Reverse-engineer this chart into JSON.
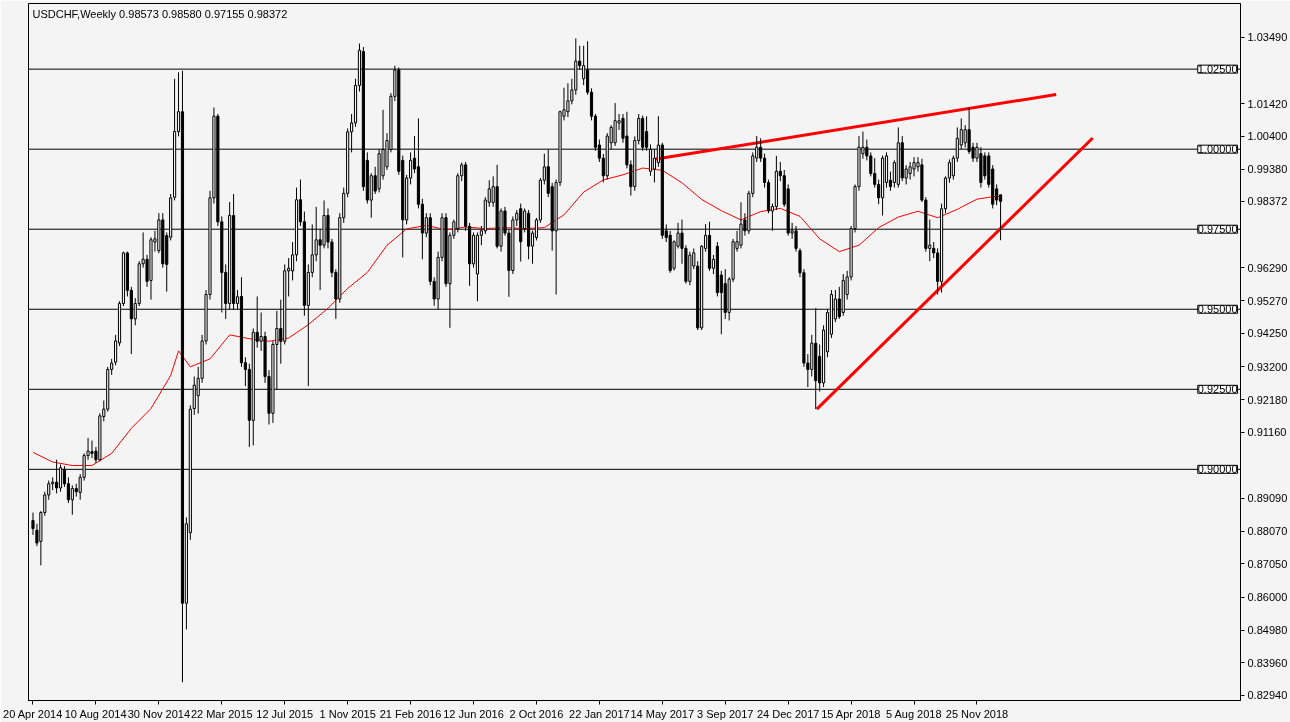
{
  "chart_data": {
    "type": "candlestick",
    "title": "USDCHF,Weekly 0.98573 0.98580 0.97155 0.98372",
    "color": "#000000",
    "x": [
      "2014-04-20",
      "2014-04-27",
      "2014-05-04",
      "2014-05-11",
      "2014-05-18",
      "2014-05-25",
      "2014-06-01",
      "2014-06-08",
      "2014-06-15",
      "2014-06-22",
      "2014-06-29",
      "2014-07-06",
      "2014-07-13",
      "2014-07-20",
      "2014-07-27",
      "2014-08-03",
      "2014-08-10",
      "2014-08-17",
      "2014-08-24",
      "2014-08-31",
      "2014-09-07",
      "2014-09-14",
      "2014-09-21",
      "2014-09-28",
      "2014-10-05",
      "2014-10-12",
      "2014-10-19",
      "2014-10-26",
      "2014-11-02",
      "2014-11-09",
      "2014-11-16",
      "2014-11-23",
      "2014-11-30",
      "2014-12-07",
      "2014-12-14",
      "2014-12-21",
      "2014-12-28",
      "2015-01-04",
      "2015-01-11",
      "2015-01-18",
      "2015-01-25",
      "2015-02-01",
      "2015-02-08",
      "2015-02-15",
      "2015-02-22",
      "2015-03-01",
      "2015-03-08",
      "2015-03-15",
      "2015-03-22",
      "2015-03-29",
      "2015-04-05",
      "2015-04-12",
      "2015-04-19",
      "2015-04-26",
      "2015-05-03",
      "2015-05-10",
      "2015-05-17",
      "2015-05-24",
      "2015-05-31",
      "2015-06-07",
      "2015-06-14",
      "2015-06-21",
      "2015-06-28",
      "2015-07-05",
      "2015-07-12",
      "2015-07-19",
      "2015-07-26",
      "2015-08-02",
      "2015-08-09",
      "2015-08-16",
      "2015-08-23",
      "2015-08-30",
      "2015-09-06",
      "2015-09-13",
      "2015-09-20",
      "2015-09-27",
      "2015-10-04",
      "2015-10-11",
      "2015-10-18",
      "2015-10-25",
      "2015-11-01",
      "2015-11-08",
      "2015-11-15",
      "2015-11-22",
      "2015-11-29",
      "2015-12-06",
      "2015-12-13",
      "2015-12-20",
      "2015-12-27",
      "2016-01-03",
      "2016-01-10",
      "2016-01-17",
      "2016-01-24",
      "2016-01-31",
      "2016-02-07",
      "2016-02-14",
      "2016-02-21",
      "2016-02-28",
      "2016-03-06",
      "2016-03-13",
      "2016-03-20",
      "2016-03-27",
      "2016-04-03",
      "2016-04-10",
      "2016-04-17",
      "2016-04-24",
      "2016-05-01",
      "2016-05-08",
      "2016-05-15",
      "2016-05-22",
      "2016-05-29",
      "2016-06-05",
      "2016-06-12",
      "2016-06-19",
      "2016-06-26",
      "2016-07-03",
      "2016-07-10",
      "2016-07-17",
      "2016-07-24",
      "2016-07-31",
      "2016-08-07",
      "2016-08-14",
      "2016-08-21",
      "2016-08-28",
      "2016-09-04",
      "2016-09-11",
      "2016-09-18",
      "2016-09-25",
      "2016-10-02",
      "2016-10-09",
      "2016-10-16",
      "2016-10-23",
      "2016-10-30",
      "2016-11-06",
      "2016-11-13",
      "2016-11-20",
      "2016-11-27",
      "2016-12-04",
      "2016-12-11",
      "2016-12-18",
      "2016-12-25",
      "2017-01-01",
      "2017-01-08",
      "2017-01-15",
      "2017-01-22",
      "2017-01-29",
      "2017-02-05",
      "2017-02-12",
      "2017-02-19",
      "2017-02-26",
      "2017-03-05",
      "2017-03-12",
      "2017-03-19",
      "2017-03-26",
      "2017-04-02",
      "2017-04-09",
      "2017-04-16",
      "2017-04-23",
      "2017-04-30",
      "2017-05-07",
      "2017-05-14",
      "2017-05-21",
      "2017-05-28",
      "2017-06-04",
      "2017-06-11",
      "2017-06-18",
      "2017-06-25",
      "2017-07-02",
      "2017-07-09",
      "2017-07-16",
      "2017-07-23",
      "2017-07-30",
      "2017-08-06",
      "2017-08-13",
      "2017-08-20",
      "2017-08-27",
      "2017-09-03",
      "2017-09-10",
      "2017-09-17",
      "2017-09-24",
      "2017-10-01",
      "2017-10-08",
      "2017-10-15",
      "2017-10-22",
      "2017-10-29",
      "2017-11-05",
      "2017-11-12",
      "2017-11-19",
      "2017-11-26",
      "2017-12-03",
      "2017-12-10",
      "2017-12-17",
      "2017-12-24",
      "2017-12-31",
      "2018-01-07",
      "2018-01-14",
      "2018-01-21",
      "2018-01-28",
      "2018-02-04",
      "2018-02-11",
      "2018-02-18",
      "2018-02-25",
      "2018-03-04",
      "2018-03-11",
      "2018-03-18",
      "2018-03-25",
      "2018-04-01",
      "2018-04-08",
      "2018-04-15",
      "2018-04-22",
      "2018-04-29",
      "2018-05-06",
      "2018-05-13",
      "2018-05-20",
      "2018-05-27",
      "2018-06-03",
      "2018-06-10",
      "2018-06-17",
      "2018-06-24",
      "2018-07-01",
      "2018-07-08",
      "2018-07-15",
      "2018-07-22",
      "2018-07-29",
      "2018-08-05",
      "2018-08-12",
      "2018-08-19",
      "2018-08-26",
      "2018-09-02",
      "2018-09-09",
      "2018-09-16",
      "2018-09-23",
      "2018-09-30",
      "2018-10-07",
      "2018-10-14",
      "2018-10-21",
      "2018-10-28",
      "2018-11-04",
      "2018-11-11",
      "2018-11-18",
      "2018-11-25",
      "2018-12-02",
      "2018-12-09",
      "2018-12-16",
      "2018-12-23",
      "2018-12-30",
      "2019-01-06"
    ],
    "ohlc": [
      [
        0.884,
        0.8865,
        0.8795,
        0.8815
      ],
      [
        0.881,
        0.883,
        0.876,
        0.877
      ],
      [
        0.8775,
        0.887,
        0.87,
        0.8865
      ],
      [
        0.8865,
        0.893,
        0.8855,
        0.892
      ],
      [
        0.892,
        0.8965,
        0.8905,
        0.8955
      ],
      [
        0.8955,
        0.8975,
        0.8935,
        0.896
      ],
      [
        0.896,
        0.903,
        0.8925,
        0.8942
      ],
      [
        0.8942,
        0.9015,
        0.893,
        0.9005
      ],
      [
        0.9,
        0.901,
        0.8945,
        0.8955
      ],
      [
        0.8955,
        0.8975,
        0.8895,
        0.8905
      ],
      [
        0.8905,
        0.895,
        0.8858,
        0.894
      ],
      [
        0.894,
        0.8955,
        0.8915,
        0.893
      ],
      [
        0.8928,
        0.8985,
        0.8905,
        0.8975
      ],
      [
        0.8975,
        0.905,
        0.8965,
        0.9043
      ],
      [
        0.9043,
        0.9098,
        0.903,
        0.9057
      ],
      [
        0.9055,
        0.909,
        0.9035,
        0.905
      ],
      [
        0.9057,
        0.907,
        0.902,
        0.903
      ],
      [
        0.903,
        0.9175,
        0.9025,
        0.9167
      ],
      [
        0.9165,
        0.9215,
        0.915,
        0.9188
      ],
      [
        0.9188,
        0.932,
        0.918,
        0.9312
      ],
      [
        0.9312,
        0.9345,
        0.9295,
        0.9332
      ],
      [
        0.9335,
        0.942,
        0.9325,
        0.9401
      ],
      [
        0.9395,
        0.9525,
        0.9385,
        0.9518
      ],
      [
        0.9518,
        0.968,
        0.951,
        0.9676
      ],
      [
        0.9676,
        0.968,
        0.954,
        0.9559
      ],
      [
        0.9559,
        0.957,
        0.936,
        0.947
      ],
      [
        0.947,
        0.9535,
        0.945,
        0.9518
      ],
      [
        0.9518,
        0.965,
        0.951,
        0.9642
      ],
      [
        0.9642,
        0.974,
        0.963,
        0.9656
      ],
      [
        0.9656,
        0.967,
        0.957,
        0.9587
      ],
      [
        0.959,
        0.9725,
        0.953,
        0.9717
      ],
      [
        0.971,
        0.9745,
        0.968,
        0.972
      ],
      [
        0.9683,
        0.98,
        0.9675,
        0.9779
      ],
      [
        0.9779,
        0.98,
        0.963,
        0.9642
      ],
      [
        0.973,
        0.974,
        0.9555,
        0.964
      ],
      [
        0.9725,
        0.986,
        0.9715,
        0.9848
      ],
      [
        0.985,
        1.022,
        0.984,
        1.0055
      ],
      [
        1.0055,
        1.024,
        1.004,
        1.0117
      ],
      [
        1.0117,
        1.0245,
        0.8335,
        0.8582
      ],
      [
        0.8582,
        0.885,
        0.85,
        0.883
      ],
      [
        0.8802,
        0.92,
        0.878,
        0.9188
      ],
      [
        0.919,
        0.929,
        0.917,
        0.9263
      ],
      [
        0.923,
        0.932,
        0.9174,
        0.9284
      ],
      [
        0.9284,
        0.942,
        0.927,
        0.9401
      ],
      [
        0.9401,
        0.956,
        0.939,
        0.9546
      ],
      [
        0.9546,
        0.987,
        0.953,
        0.9848
      ],
      [
        0.9848,
        1.013,
        0.983,
        1.0103
      ],
      [
        1.0103,
        1.011,
        0.976,
        0.9773
      ],
      [
        0.9773,
        0.979,
        0.949,
        0.9615
      ],
      [
        0.9615,
        0.964,
        0.947,
        0.9518
      ],
      [
        0.9518,
        0.9835,
        0.95,
        0.9793
      ],
      [
        0.9793,
        0.986,
        0.9498,
        0.9518
      ],
      [
        0.9518,
        0.956,
        0.95,
        0.9539
      ],
      [
        0.954,
        0.96,
        0.932,
        0.9333
      ],
      [
        0.9333,
        0.935,
        0.926,
        0.9312
      ],
      [
        0.9312,
        0.933,
        0.907,
        0.9153
      ],
      [
        0.9153,
        0.944,
        0.9075,
        0.9428
      ],
      [
        0.9428,
        0.954,
        0.938,
        0.94
      ],
      [
        0.94,
        0.949,
        0.937,
        0.9415
      ],
      [
        0.9415,
        0.943,
        0.927,
        0.929
      ],
      [
        0.929,
        0.931,
        0.914,
        0.9175
      ],
      [
        0.9175,
        0.94,
        0.9145,
        0.939
      ],
      [
        0.939,
        0.9495,
        0.925,
        0.944
      ],
      [
        0.944,
        0.953,
        0.933,
        0.94
      ],
      [
        0.94,
        0.964,
        0.939,
        0.962
      ],
      [
        0.962,
        0.966,
        0.954,
        0.9628
      ],
      [
        0.962,
        0.971,
        0.959,
        0.967
      ],
      [
        0.967,
        0.988,
        0.965,
        0.9842
      ],
      [
        0.9842,
        0.9905,
        0.976,
        0.9773
      ],
      [
        0.9773,
        0.9805,
        0.948,
        0.9512
      ],
      [
        0.9512,
        0.964,
        0.926,
        0.9615
      ],
      [
        0.9615,
        0.9765,
        0.96,
        0.967
      ],
      [
        0.967,
        0.982,
        0.965,
        0.9717
      ],
      [
        0.9717,
        0.975,
        0.956,
        0.97
      ],
      [
        0.97,
        0.984,
        0.969,
        0.9793
      ],
      [
        0.9793,
        0.9815,
        0.969,
        0.971
      ],
      [
        0.971,
        0.972,
        0.96,
        0.9615
      ],
      [
        0.9615,
        0.9625,
        0.947,
        0.9532
      ],
      [
        0.9532,
        0.98,
        0.952,
        0.9786
      ],
      [
        0.9786,
        0.988,
        0.977,
        0.9862
      ],
      [
        0.9862,
        1.0065,
        0.985,
        1.0054
      ],
      [
        1.0054,
        1.011,
        0.999,
        1.0082
      ],
      [
        1.0082,
        1.022,
        1.007,
        1.0199
      ],
      [
        1.0199,
        1.033,
        1.018,
        1.0309
      ],
      [
        1.0305,
        1.0319,
        0.987,
        0.9883
      ],
      [
        0.9965,
        0.999,
        0.983,
        0.9841
      ],
      [
        0.9841,
        0.9925,
        0.9786,
        0.9917
      ],
      [
        0.9917,
        0.9945,
        0.986,
        0.9869
      ],
      [
        0.9876,
        1.0,
        0.9865,
        0.9986
      ],
      [
        0.9917,
        1.0123,
        0.9905,
        0.9999
      ],
      [
        0.9945,
        1.005,
        0.9935,
        1.0027
      ],
      [
        0.9999,
        1.0175,
        0.999,
        1.0165
      ],
      [
        1.0165,
        1.0261,
        1.015,
        1.0247
      ],
      [
        1.0247,
        1.0255,
        0.992,
        0.9931
      ],
      [
        0.9965,
        0.998,
        0.9662,
        0.9779
      ],
      [
        0.9779,
        0.992,
        0.9765,
        0.991
      ],
      [
        0.991,
        0.999,
        0.989,
        0.9965
      ],
      [
        0.9972,
        1.0041,
        0.9925,
        0.9938
      ],
      [
        0.9945,
        1.0096,
        0.9815,
        0.9828
      ],
      [
        0.9828,
        0.9845,
        0.9656,
        0.9738
      ],
      [
        0.9738,
        0.98,
        0.9725,
        0.9786
      ],
      [
        0.9786,
        0.98,
        0.9575,
        0.9587
      ],
      [
        0.9587,
        0.96,
        0.9511,
        0.9532
      ],
      [
        0.9532,
        0.968,
        0.95,
        0.9662
      ],
      [
        0.9662,
        0.98,
        0.965,
        0.9786
      ],
      [
        0.9786,
        0.98,
        0.957,
        0.958
      ],
      [
        0.958,
        0.974,
        0.9442,
        0.9731
      ],
      [
        0.9731,
        0.978,
        0.972,
        0.9773
      ],
      [
        0.9752,
        0.9925,
        0.974,
        0.9917
      ],
      [
        0.9917,
        0.9958,
        0.99,
        0.9951
      ],
      [
        0.9951,
        0.996,
        0.9745,
        0.9759
      ],
      [
        0.9759,
        0.977,
        0.9573,
        0.9642
      ],
      [
        0.9642,
        0.974,
        0.963,
        0.9731
      ],
      [
        0.961,
        0.974,
        0.9525,
        0.9731
      ],
      [
        0.9731,
        0.976,
        0.97,
        0.9745
      ],
      [
        0.9745,
        0.985,
        0.9735,
        0.9841
      ],
      [
        0.9834,
        0.9903,
        0.982,
        0.9876
      ],
      [
        0.9834,
        0.9915,
        0.982,
        0.9883
      ],
      [
        0.9883,
        0.9951,
        0.969,
        0.9697
      ],
      [
        0.9697,
        0.9815,
        0.968,
        0.9807
      ],
      [
        0.9807,
        0.982,
        0.973,
        0.9738
      ],
      [
        0.9738,
        0.975,
        0.9539,
        0.9621
      ],
      [
        0.9621,
        0.979,
        0.961,
        0.9779
      ],
      [
        0.9779,
        0.981,
        0.976,
        0.98
      ],
      [
        0.9814,
        0.983,
        0.9649,
        0.9711
      ],
      [
        0.9752,
        0.9815,
        0.974,
        0.9807
      ],
      [
        0.98,
        0.981,
        0.9656,
        0.9697
      ],
      [
        0.9697,
        0.9745,
        0.9642,
        0.9738
      ],
      [
        0.9724,
        0.9785,
        0.9715,
        0.9779
      ],
      [
        0.9779,
        0.991,
        0.977,
        0.9903
      ],
      [
        0.9903,
        0.9986,
        0.989,
        0.9945
      ],
      [
        0.9945,
        0.9999,
        0.985,
        0.9862
      ],
      [
        0.9883,
        0.9895,
        0.9683,
        0.9745
      ],
      [
        0.9745,
        0.9905,
        0.9546,
        0.9896
      ],
      [
        0.9896,
        1.012,
        0.9885,
        1.0117
      ],
      [
        1.0103,
        1.0192,
        1.009,
        1.0123
      ],
      [
        1.0117,
        1.0206,
        1.01,
        1.0151
      ],
      [
        1.0151,
        1.022,
        1.014,
        1.0185
      ],
      [
        1.0185,
        1.0346,
        1.017,
        1.0275
      ],
      [
        1.0275,
        1.0323,
        1.025,
        1.0261
      ],
      [
        1.022,
        1.0323,
        1.02,
        1.0261
      ],
      [
        1.0247,
        1.0337,
        1.017,
        1.0178
      ],
      [
        1.0178,
        1.019,
        1.009,
        1.0103
      ],
      [
        1.0103,
        1.011,
        0.9995,
        1.0006
      ],
      [
        1.0013,
        1.003,
        0.996,
        0.9972
      ],
      [
        0.9972,
        0.9985,
        0.9896,
        0.9917
      ],
      [
        0.9917,
        1.005,
        0.9905,
        1.0041
      ],
      [
        1.002,
        1.0075,
        1.0,
        1.0068
      ],
      [
        1.002,
        1.0144,
        1.001,
        1.0089
      ],
      [
        1.0082,
        1.011,
        1.006,
        1.0089
      ],
      [
        1.0096,
        1.011,
        1.002,
        1.0034
      ],
      [
        1.0041,
        1.0117,
        0.994,
        0.9951
      ],
      [
        0.9951,
        0.9965,
        0.9855,
        0.9883
      ],
      [
        0.9883,
        1.004,
        0.987,
        1.0027
      ],
      [
        1.0027,
        1.011,
        1.0015,
        1.0096
      ],
      [
        1.0096,
        1.0105,
        0.9995,
        1.0006
      ],
      [
        1.0055,
        1.0103,
        0.9995,
        1.0006
      ],
      [
        0.9931,
        1.0015,
        0.9917,
        0.9999
      ],
      [
        0.9938,
        1.0,
        0.9896,
        0.9972
      ],
      [
        0.9958,
        1.0103,
        0.9945,
        1.0013
      ],
      [
        1.0013,
        1.002,
        0.972,
        0.9731
      ],
      [
        0.9745,
        0.9765,
        0.971,
        0.9724
      ],
      [
        0.9731,
        0.9745,
        0.9614,
        0.9621
      ],
      [
        0.9628,
        0.9715,
        0.9621,
        0.9711
      ],
      [
        0.9697,
        0.977,
        0.969,
        0.9738
      ],
      [
        0.9738,
        0.978,
        0.9642,
        0.969
      ],
      [
        0.969,
        0.97,
        0.958,
        0.9587
      ],
      [
        0.9587,
        0.968,
        0.9575,
        0.9669
      ],
      [
        0.9635,
        0.969,
        0.9625,
        0.9676
      ],
      [
        0.9635,
        0.965,
        0.9435,
        0.9442
      ],
      [
        0.9442,
        0.97,
        0.9435,
        0.9697
      ],
      [
        0.969,
        0.9766,
        0.968,
        0.9731
      ],
      [
        0.9731,
        0.9773,
        0.962,
        0.9628
      ],
      [
        0.9628,
        0.967,
        0.961,
        0.9656
      ],
      [
        0.9697,
        0.971,
        0.954,
        0.9552
      ],
      [
        0.9607,
        0.962,
        0.9422,
        0.9552
      ],
      [
        0.958,
        0.9625,
        0.947,
        0.949
      ],
      [
        0.949,
        0.96,
        0.9465,
        0.9594
      ],
      [
        0.9594,
        0.972,
        0.9585,
        0.9711
      ],
      [
        0.969,
        0.9745,
        0.968,
        0.9711
      ],
      [
        0.97,
        0.9834,
        0.969,
        0.9766
      ],
      [
        0.9779,
        0.98,
        0.973,
        0.9745
      ],
      [
        0.9745,
        0.987,
        0.9735,
        0.9862
      ],
      [
        0.9862,
        0.999,
        0.985,
        0.9979
      ],
      [
        0.9972,
        1.0041,
        0.996,
        1.0006
      ],
      [
        1.0006,
        1.0034,
        0.996,
        0.9972
      ],
      [
        0.9972,
        0.9986,
        0.988,
        0.9896
      ],
      [
        0.9896,
        0.9905,
        0.98,
        0.9807
      ],
      [
        0.9807,
        0.983,
        0.9745,
        0.9821
      ],
      [
        0.9821,
        0.9979,
        0.981,
        0.9931
      ],
      [
        0.9931,
        0.996,
        0.99,
        0.9917
      ],
      [
        0.9917,
        0.9935,
        0.982,
        0.9828
      ],
      [
        0.9876,
        0.989,
        0.973,
        0.9738
      ],
      [
        0.9738,
        0.977,
        0.972,
        0.9745
      ],
      [
        0.9745,
        0.976,
        0.968,
        0.969
      ],
      [
        0.9683,
        0.969,
        0.96,
        0.9614
      ],
      [
        0.9614,
        0.9625,
        0.932,
        0.9332
      ],
      [
        0.9332,
        0.936,
        0.9257,
        0.9312
      ],
      [
        0.9312,
        0.942,
        0.929,
        0.9394
      ],
      [
        0.9394,
        0.9504,
        0.9188,
        0.9277
      ],
      [
        0.9353,
        0.939,
        0.9243,
        0.927
      ],
      [
        0.927,
        0.945,
        0.9257,
        0.9435
      ],
      [
        0.9367,
        0.95,
        0.935,
        0.949
      ],
      [
        0.9422,
        0.956,
        0.941,
        0.9546
      ],
      [
        0.947,
        0.956,
        0.946,
        0.9532
      ],
      [
        0.9532,
        0.957,
        0.947,
        0.9477
      ],
      [
        0.949,
        0.961,
        0.948,
        0.959
      ],
      [
        0.9546,
        0.962,
        0.953,
        0.9601
      ],
      [
        0.9601,
        0.976,
        0.959,
        0.9752
      ],
      [
        0.9752,
        0.989,
        0.974,
        0.9883
      ],
      [
        0.9883,
        1.0041,
        0.987,
        1.0006
      ],
      [
        0.9986,
        1.0055,
        0.997,
        1.0006
      ],
      [
        1.0006,
        1.003,
        0.9965,
        0.9979
      ],
      [
        0.9979,
        0.999,
        0.9915,
        0.9924
      ],
      [
        0.9924,
        0.9972,
        0.988,
        0.989
      ],
      [
        0.989,
        0.9905,
        0.9828,
        0.9848
      ],
      [
        0.9848,
        0.998,
        0.9793,
        0.9972
      ],
      [
        0.9896,
        0.999,
        0.988,
        0.9979
      ],
      [
        0.9903,
        0.993,
        0.987,
        0.9883
      ],
      [
        0.9896,
        0.9965,
        0.988,
        0.9958
      ],
      [
        0.989,
        1.0068,
        0.988,
        1.002
      ],
      [
        1.002,
        1.0041,
        0.99,
        0.991
      ],
      [
        0.991,
        0.995,
        0.989,
        0.9938
      ],
      [
        0.9924,
        0.996,
        0.9905,
        0.9945
      ],
      [
        0.9938,
        0.9975,
        0.9915,
        0.9958
      ],
      [
        0.9945,
        0.9975,
        0.993,
        0.9958
      ],
      [
        0.9951,
        0.997,
        0.9835,
        0.9841
      ],
      [
        0.9841,
        0.985,
        0.968,
        0.969
      ],
      [
        0.969,
        0.978,
        0.965,
        0.97
      ],
      [
        0.969,
        0.971,
        0.966,
        0.9676
      ],
      [
        0.9676,
        0.969,
        0.9546,
        0.9587
      ],
      [
        0.9587,
        0.983,
        0.9552,
        0.9814
      ],
      [
        0.9814,
        0.9915,
        0.98,
        0.991
      ],
      [
        0.991,
        0.9968,
        0.9895,
        0.9958
      ],
      [
        0.9917,
        0.998,
        0.9905,
        0.9972
      ],
      [
        0.9972,
        1.0068,
        0.996,
        1.0034
      ],
      [
        1.0013,
        1.0096,
        1.0,
        1.0061
      ],
      [
        1.002,
        1.0075,
        1.0005,
        1.0061
      ],
      [
        1.0061,
        1.013,
        0.9985,
        0.9993
      ],
      [
        1.0006,
        1.002,
        0.996,
        0.9972
      ],
      [
        0.9972,
        1.002,
        0.996,
        1.0006
      ],
      [
        0.9986,
        1.0006,
        0.988,
        0.9896
      ],
      [
        0.9979,
        0.999,
        0.9905,
        0.9917
      ],
      [
        0.9979,
        0.999,
        0.988,
        0.989
      ],
      [
        0.9938,
        0.995,
        0.9815,
        0.9828
      ],
      [
        0.9876,
        0.989,
        0.9825,
        0.9841
      ],
      [
        0.98573,
        0.9858,
        0.97155,
        0.98372
      ]
    ],
    "series": [
      {
        "type": "line",
        "color": "#ff0000",
        "x": [
          "2014-04-20",
          "2014-05-25",
          "2014-06-29",
          "2014-08-03",
          "2014-09-07",
          "2014-10-12",
          "2014-11-16",
          "2014-12-21",
          "2015-01-04",
          "2015-01-25",
          "2015-03-01",
          "2015-04-05",
          "2015-05-10",
          "2015-06-14",
          "2015-07-19",
          "2015-08-23",
          "2015-09-27",
          "2015-11-01",
          "2015-12-06",
          "2016-01-10",
          "2016-02-14",
          "2016-03-20",
          "2016-04-24",
          "2016-05-29",
          "2016-07-03",
          "2016-08-07",
          "2016-09-11",
          "2016-10-16",
          "2016-11-20",
          "2016-12-25",
          "2017-01-29",
          "2017-03-05",
          "2017-04-09",
          "2017-05-14",
          "2017-06-18",
          "2017-07-23",
          "2017-08-27",
          "2017-10-01",
          "2017-11-05",
          "2017-12-10",
          "2018-01-14",
          "2018-02-18",
          "2018-03-25",
          "2018-04-29",
          "2018-06-03",
          "2018-07-08",
          "2018-08-12",
          "2018-09-16",
          "2018-10-21",
          "2018-11-25",
          "2018-12-30",
          "2019-01-06"
        ],
        "values": [
          0.9053,
          0.9023,
          0.9012,
          0.9012,
          0.905,
          0.9128,
          0.919,
          0.9293,
          0.937,
          0.932,
          0.9345,
          0.942,
          0.9408,
          0.94,
          0.941,
          0.9452,
          0.9503,
          0.9565,
          0.9615,
          0.97,
          0.9751,
          0.9762,
          0.9748,
          0.9757,
          0.9752,
          0.9755,
          0.9752,
          0.9755,
          0.9795,
          0.9866,
          0.9904,
          0.992,
          0.9941,
          0.9934,
          0.9895,
          0.9843,
          0.9808,
          0.9779,
          0.9805,
          0.9815,
          0.979,
          0.972,
          0.968,
          0.97,
          0.9755,
          0.9788,
          0.9806,
          0.9786,
          0.9812,
          0.9844,
          0.9853,
          0.9852
        ]
      },
      {
        "type": "line",
        "color": "#ff0000",
        "x": [
          "2017-05-03",
          "2019-04-15"
        ],
        "values": [
          0.9969,
          1.0171
        ]
      },
      {
        "type": "line",
        "color": "#ff0000",
        "x": [
          "2018-02-13",
          "2019-06-19"
        ],
        "values": [
          0.9188,
          1.0035
        ]
      }
    ],
    "xlim": [
      "2014-04-12",
      "2020-03-08"
    ],
    "xticks": [
      {
        "value": "2014-04-20",
        "label": "20 Apr 2014"
      },
      {
        "value": "2014-08-10",
        "label": "10 Aug 2014"
      },
      {
        "value": "2014-11-30",
        "label": "30 Nov 2014"
      },
      {
        "value": "2015-03-22",
        "label": "22 Mar 2015"
      },
      {
        "value": "2015-07-12",
        "label": "12 Jul 2015"
      },
      {
        "value": "2015-11-01",
        "label": "1 Nov 2015"
      },
      {
        "value": "2016-02-21",
        "label": "21 Feb 2016"
      },
      {
        "value": "2016-06-12",
        "label": "12 Jun 2016"
      },
      {
        "value": "2016-10-02",
        "label": "2 Oct 2016"
      },
      {
        "value": "2017-01-22",
        "label": "22 Jan 2017"
      },
      {
        "value": "2017-05-14",
        "label": "14 May 2017"
      },
      {
        "value": "2017-09-03",
        "label": "3 Sep 2017"
      },
      {
        "value": "2017-12-24",
        "label": "24 Dec 2017"
      },
      {
        "value": "2018-04-15",
        "label": "15 Apr 2018"
      },
      {
        "value": "2018-08-05",
        "label": "5 Aug 2018"
      },
      {
        "value": "2018-11-25",
        "label": "25 Nov 2018"
      }
    ],
    "ylim": [
      0.8278,
      1.0455
    ],
    "yticks": [
      {
        "value": 1.0349,
        "label": "1.03490"
      },
      {
        "value": 1.0142,
        "label": "1.01420"
      },
      {
        "value": 1.004,
        "label": "1.00400"
      },
      {
        "value": 0.9938,
        "label": "0.99380"
      },
      {
        "value": 0.98372,
        "label": "0.98372"
      },
      {
        "value": 0.9629,
        "label": "0.96290"
      },
      {
        "value": 0.9527,
        "label": "0.95270"
      },
      {
        "value": 0.9425,
        "label": "0.94250"
      },
      {
        "value": 0.932,
        "label": "0.93200"
      },
      {
        "value": 0.9218,
        "label": "0.92180"
      },
      {
        "value": 0.9116,
        "label": "0.91160"
      },
      {
        "value": 0.8909,
        "label": "0.89090"
      },
      {
        "value": 0.8807,
        "label": "0.88070"
      },
      {
        "value": 0.8705,
        "label": "0.87050"
      },
      {
        "value": 0.86,
        "label": "0.86000"
      },
      {
        "value": 0.8498,
        "label": "0.84980"
      },
      {
        "value": 0.8396,
        "label": "0.83960"
      },
      {
        "value": 0.8294,
        "label": "0.82940"
      }
    ],
    "ref_lines": [
      {
        "axis": "y",
        "value": 1.025,
        "label": "1.02500",
        "color": "#000000"
      },
      {
        "axis": "y",
        "value": 1.0,
        "label": "1.00000",
        "color": "#000000"
      },
      {
        "axis": "y",
        "value": 0.975,
        "label": "0.97500",
        "color": "#000000"
      },
      {
        "axis": "y",
        "value": 0.95,
        "label": "0.95000",
        "color": "#000000"
      },
      {
        "axis": "y",
        "value": 0.925,
        "label": "0.92500",
        "color": "#000000"
      },
      {
        "axis": "y",
        "value": 0.9,
        "label": "0.90000",
        "color": "#000000"
      }
    ]
  }
}
